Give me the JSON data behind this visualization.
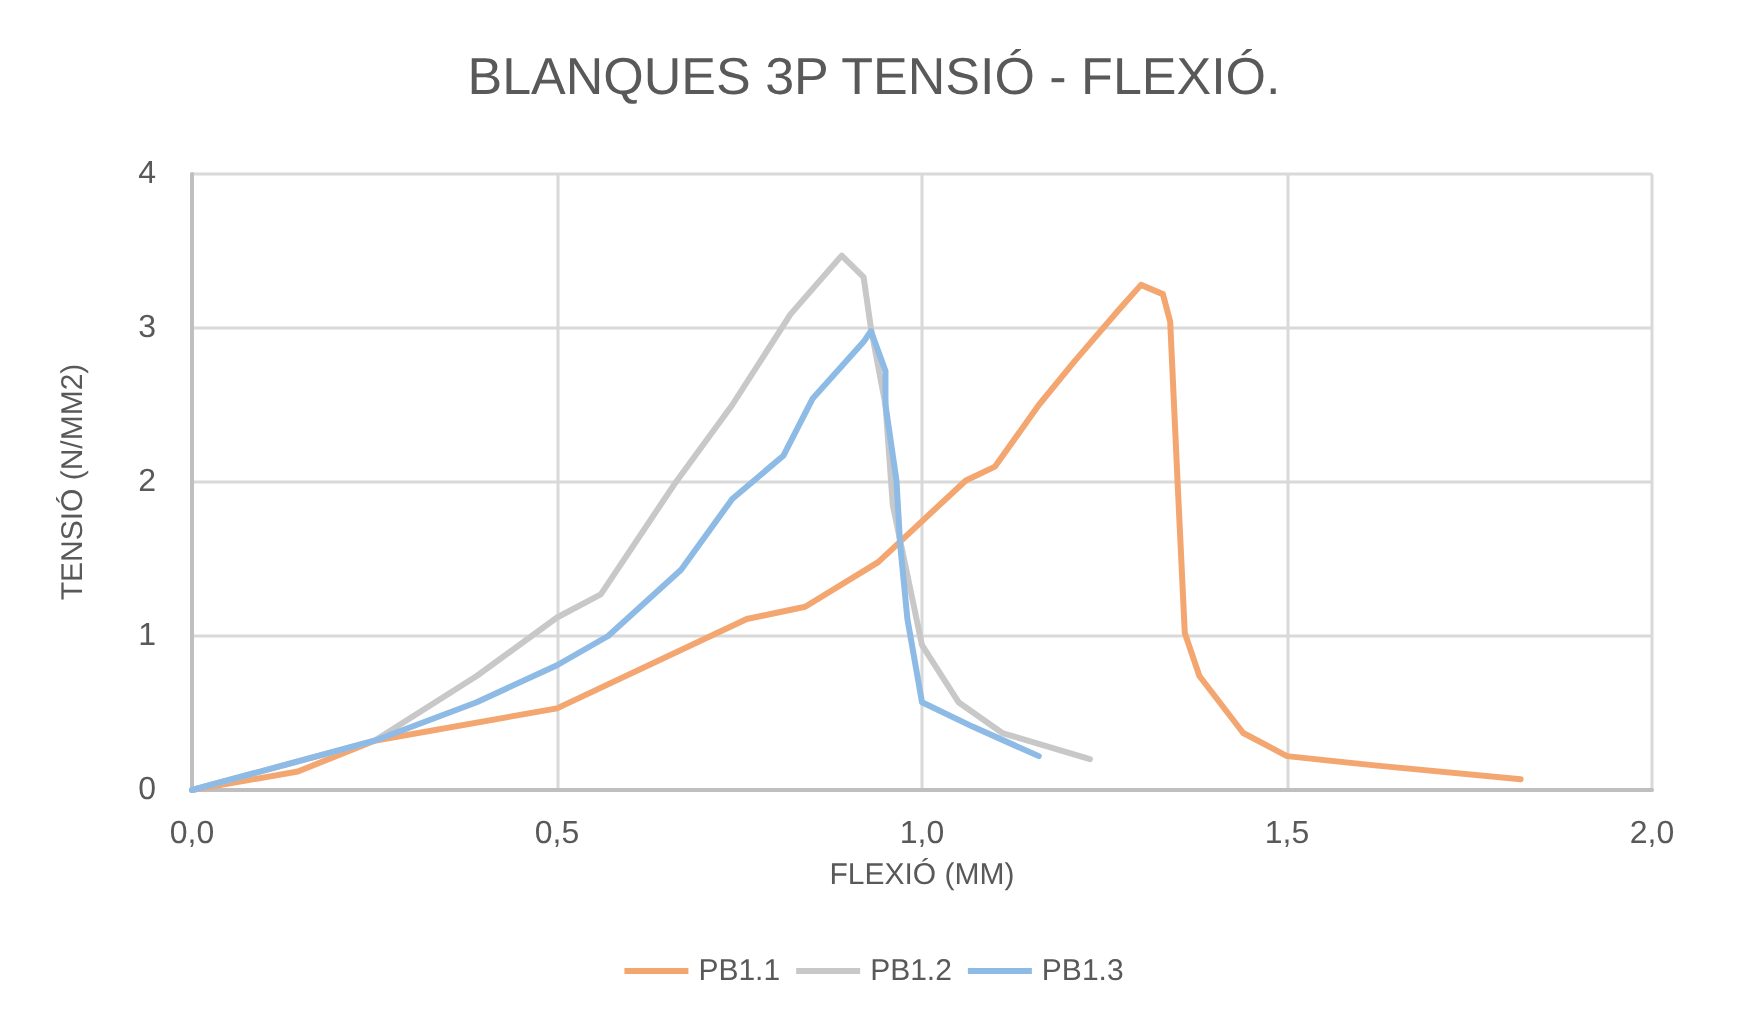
{
  "chart_data": {
    "type": "line",
    "title": "BLANQUES 3P TENSIÓ - FLEXIÓ.",
    "xlabel": "FLEXIÓ (MM)",
    "ylabel": "TENSIÓ (N/MM2)",
    "xlim": [
      0,
      2
    ],
    "xticks": [
      {
        "value": 0,
        "label": "0,0"
      },
      {
        "value": 0.5,
        "label": "0,5"
      },
      {
        "value": 1,
        "label": "1,0"
      },
      {
        "value": 1.5,
        "label": "1,5"
      },
      {
        "value": 2,
        "label": "2,0"
      }
    ],
    "ylim": [
      0,
      4
    ],
    "yticks": [
      0,
      1,
      2,
      3,
      4
    ],
    "grid": true,
    "legend": "bottom",
    "marker": "none",
    "line_style": "solid",
    "series": [
      {
        "name": "PB1.1",
        "color": "#f4a671",
        "x": [
          0,
          0.145,
          0.25,
          0.5,
          0.76,
          0.84,
          0.94,
          1.06,
          1.1,
          1.16,
          1.21,
          1.27,
          1.3,
          1.33,
          1.34,
          1.35,
          1.36,
          1.38,
          1.44,
          1.5,
          1.62,
          1.82
        ],
        "values": [
          0,
          0.12,
          0.32,
          0.53,
          1.11,
          1.19,
          1.48,
          2.01,
          2.1,
          2.5,
          2.79,
          3.12,
          3.28,
          3.22,
          3.04,
          2.01,
          1.02,
          0.74,
          0.37,
          0.22,
          0.16,
          0.07
        ]
      },
      {
        "name": "PB1.2",
        "color": "#c8c8c8",
        "x": [
          0,
          0.25,
          0.39,
          0.5,
          0.56,
          0.66,
          0.74,
          0.82,
          0.89,
          0.92,
          0.93,
          0.95,
          0.96,
          1.0,
          1.05,
          1.11,
          1.23
        ],
        "values": [
          0,
          0.32,
          0.74,
          1.12,
          1.27,
          1.98,
          2.5,
          3.09,
          3.47,
          3.33,
          3.0,
          2.5,
          1.85,
          0.94,
          0.57,
          0.37,
          0.2
        ]
      },
      {
        "name": "PB1.3",
        "color": "#8dbbe5",
        "x": [
          0,
          0.25,
          0.39,
          0.5,
          0.57,
          0.67,
          0.74,
          0.81,
          0.85,
          0.92,
          0.93,
          0.95,
          0.95,
          0.965,
          0.97,
          0.98,
          1.0,
          1.07,
          1.16
        ],
        "values": [
          0,
          0.32,
          0.57,
          0.81,
          1.0,
          1.43,
          1.89,
          2.17,
          2.54,
          2.91,
          2.98,
          2.72,
          2.5,
          2.01,
          1.6,
          1.11,
          0.57,
          0.41,
          0.22
        ]
      }
    ]
  }
}
